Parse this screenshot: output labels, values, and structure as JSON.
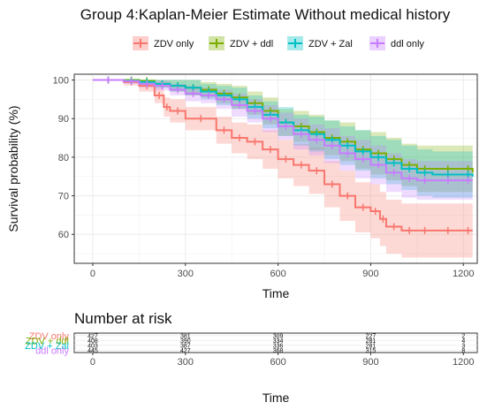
{
  "chart_data": [
    {
      "type": "line",
      "title": "Group 4:Kaplan-Meier Estimate Without medical history",
      "xlabel": "Time",
      "ylabel": "Survival probability (%)",
      "xlim": [
        -60,
        1245
      ],
      "ylim": [
        52.5,
        101.5
      ],
      "xticks": [
        0,
        300,
        600,
        900,
        1200
      ],
      "yticks": [
        60,
        70,
        80,
        90,
        100
      ],
      "grid": true,
      "legend_position": "top",
      "confidence_bands": true,
      "series": [
        {
          "name": "ZDV only",
          "color": "#F8766D",
          "x": [
            0,
            100,
            150,
            200,
            230,
            250,
            300,
            400,
            450,
            500,
            550,
            600,
            650,
            700,
            750,
            800,
            850,
            900,
            930,
            950,
            1000,
            1050,
            1100,
            1200,
            1230
          ],
          "y": [
            100,
            99.5,
            98.5,
            96,
            93,
            92,
            90,
            87,
            85,
            84,
            82,
            79.5,
            78,
            76.5,
            73,
            70,
            67,
            66,
            64,
            62,
            61,
            61,
            61,
            61,
            61
          ],
          "lower": [
            100,
            98.6,
            97,
            94,
            90.5,
            89,
            87,
            83.5,
            81,
            79.5,
            77,
            74.5,
            72.5,
            70.5,
            67,
            63.5,
            60.5,
            59,
            57,
            55,
            54,
            54,
            54,
            54,
            54
          ],
          "upper": [
            100,
            100,
            99.8,
            98,
            95.5,
            95,
            93,
            90.5,
            89,
            88.5,
            87,
            84.5,
            83.5,
            82.5,
            79,
            76.5,
            73.5,
            73,
            71,
            69,
            68,
            68,
            68,
            68,
            68
          ]
        },
        {
          "name": "ZDV + ddl",
          "color": "#7CAE00",
          "x": [
            0,
            100,
            150,
            200,
            250,
            300,
            350,
            400,
            450,
            500,
            550,
            600,
            650,
            700,
            750,
            800,
            850,
            900,
            950,
            1000,
            1050,
            1100,
            1200,
            1230
          ],
          "y": [
            100,
            100,
            99.8,
            99,
            98.5,
            98,
            97.5,
            96.5,
            95.5,
            94,
            92,
            89,
            88,
            86.5,
            85,
            84,
            82,
            81,
            79.5,
            78,
            77,
            77,
            77,
            76
          ],
          "lower": [
            100,
            100,
            99.3,
            98,
            97,
            96,
            95.5,
            94,
            92.5,
            91,
            88.5,
            85.5,
            84,
            82,
            80.5,
            79,
            77,
            75.5,
            74,
            72.5,
            71,
            71,
            71,
            70
          ],
          "upper": [
            100,
            100,
            100,
            100,
            100,
            100,
            99.5,
            99,
            98.5,
            97,
            95.5,
            92.5,
            92,
            91,
            89.5,
            89,
            87,
            86.5,
            85,
            83.5,
            83,
            83,
            83,
            82
          ]
        },
        {
          "name": "ZDV + Zal",
          "color": "#00BFC4",
          "x": [
            0,
            100,
            150,
            200,
            250,
            300,
            350,
            400,
            450,
            500,
            550,
            600,
            650,
            700,
            750,
            800,
            850,
            900,
            950,
            1000,
            1050,
            1100,
            1200,
            1230
          ],
          "y": [
            100,
            99.8,
            99.5,
            99,
            98.5,
            98,
            97,
            96,
            95,
            93,
            91,
            89,
            87,
            86,
            84.5,
            83,
            81.5,
            80,
            78.5,
            77,
            76,
            75.5,
            75.5,
            75
          ],
          "lower": [
            100,
            99.2,
            98.6,
            98,
            97,
            96,
            95,
            93.5,
            92.5,
            90,
            87.5,
            85.5,
            83,
            81.5,
            79.5,
            78,
            76.5,
            74.5,
            73,
            71.5,
            70,
            69.5,
            69.5,
            69
          ],
          "upper": [
            100,
            100,
            100,
            100,
            100,
            100,
            99,
            98.5,
            98,
            96,
            94.5,
            93,
            91,
            90.5,
            89.5,
            88,
            87,
            85.5,
            84.5,
            83,
            82,
            81.5,
            81.5,
            81
          ]
        },
        {
          "name": "ddl only",
          "color": "#C77CFF",
          "x": [
            0,
            100,
            150,
            200,
            250,
            300,
            350,
            400,
            450,
            500,
            550,
            600,
            650,
            700,
            750,
            800,
            850,
            900,
            950,
            1000,
            1050,
            1100,
            1200,
            1230
          ],
          "y": [
            100,
            99.7,
            99,
            98.5,
            97.5,
            96.5,
            96,
            95,
            93.5,
            92,
            90,
            88,
            86,
            84.5,
            83,
            81,
            79.5,
            78,
            76,
            74.5,
            74,
            74,
            74,
            74
          ],
          "lower": [
            100,
            99,
            98,
            97.3,
            96,
            94.5,
            94,
            92.5,
            90.5,
            89,
            86.5,
            84.5,
            82,
            80.5,
            78.5,
            76.5,
            74.5,
            73,
            71,
            69.5,
            69,
            69,
            69,
            69
          ],
          "upper": [
            100,
            100,
            100,
            99.8,
            99,
            98.5,
            98,
            97.5,
            96.5,
            95,
            93.5,
            91.5,
            90,
            88.5,
            87.5,
            85.5,
            84.5,
            83,
            81,
            79.5,
            79,
            79,
            79,
            79
          ]
        }
      ]
    },
    {
      "type": "table",
      "title": "Number at risk",
      "xlabel": "Time",
      "xlim": [
        -60,
        1245
      ],
      "xticks": [
        0,
        300,
        600,
        900,
        1200
      ],
      "time_points": [
        0,
        300,
        600,
        900,
        1200
      ],
      "rows": [
        {
          "name": "ZDV only",
          "color": "#F8766D",
          "values": [
            427,
            381,
            309,
            227,
            2
          ]
        },
        {
          "name": "ZDV + ddl",
          "color": "#7CAE00",
          "values": [
            408,
            390,
            334,
            281,
            4
          ]
        },
        {
          "name": "ZDV + Zal",
          "color": "#00BFC4",
          "values": [
            403,
            387,
            336,
            281,
            3
          ]
        },
        {
          "name": "ddl only",
          "color": "#C77CFF",
          "values": [
            445,
            427,
            368,
            315,
            8
          ]
        }
      ]
    }
  ]
}
